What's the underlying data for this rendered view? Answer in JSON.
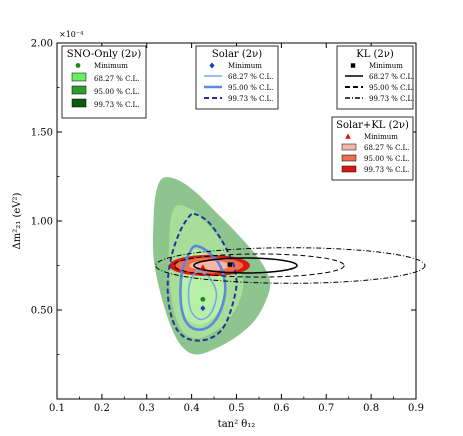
{
  "chart_data": {
    "type": "contour",
    "xlabel": "tan² θ₁₂",
    "ylabel": "Δm²₂₁ (eV²)",
    "y_multiplier": "×10⁻⁴",
    "xlim": [
      0.1,
      0.9
    ],
    "ylim": [
      0.0,
      2.0
    ],
    "x_ticks": [
      "0.1",
      "0.2",
      "0.3",
      "0.4",
      "0.5",
      "0.6",
      "0.7",
      "0.8",
      "0.9"
    ],
    "y_ticks": [
      "0.50",
      "1.00",
      "1.50",
      "2.00"
    ],
    "legends": [
      {
        "title": "SNO-Only (2ν)",
        "placement": "top-left",
        "entries": [
          {
            "label": "Minimum",
            "kind": "marker",
            "color": "#1a8a1a"
          },
          {
            "label": "68.27 % C.L.",
            "kind": "fill",
            "color": "#66ee66"
          },
          {
            "label": "95.00 % C.L.",
            "kind": "fill",
            "color": "#2e9e2e"
          },
          {
            "label": "99.73 % C.L.",
            "kind": "fill",
            "color": "#0f5a0f"
          }
        ]
      },
      {
        "title": "Solar (2ν)",
        "placement": "top-center",
        "entries": [
          {
            "label": "Minimum",
            "kind": "marker",
            "color": "#1f3fbf"
          },
          {
            "label": "68.27 % C.L.",
            "kind": "line",
            "style": "solid-thin",
            "color": "#7ba7ee"
          },
          {
            "label": "95.00 % C.L.",
            "kind": "line",
            "style": "solid-thick",
            "color": "#5b8ae0"
          },
          {
            "label": "99.73 % C.L.",
            "kind": "line",
            "style": "dashed",
            "color": "#22339b"
          }
        ]
      },
      {
        "title": "KL (2ν)",
        "placement": "top-right",
        "entries": [
          {
            "label": "Minimum",
            "kind": "marker",
            "color": "#000000"
          },
          {
            "label": "68.27 % C.L.",
            "kind": "line",
            "style": "solid",
            "color": "#000000"
          },
          {
            "label": "95.00 % C.L.",
            "kind": "line",
            "style": "dashed",
            "color": "#000000"
          },
          {
            "label": "99.73 % C.L.",
            "kind": "line",
            "style": "dashdot",
            "color": "#000000"
          }
        ]
      },
      {
        "title": "Solar+KL (2ν)",
        "placement": "right",
        "entries": [
          {
            "label": "Minimum",
            "kind": "marker",
            "color": "#dd1111"
          },
          {
            "label": "68.27 % C.L.",
            "kind": "fill",
            "color": "#f7b7a8"
          },
          {
            "label": "95.00 % C.L.",
            "kind": "fill",
            "color": "#ec6f50"
          },
          {
            "label": "99.73 % C.L.",
            "kind": "fill",
            "color": "#d81a12"
          }
        ]
      }
    ],
    "minima": [
      {
        "set": "SNO-Only",
        "x": 0.425,
        "y": 0.56,
        "color": "#1a8a1a"
      },
      {
        "set": "Solar",
        "x": 0.425,
        "y": 0.51,
        "color": "#1f3fbf"
      },
      {
        "set": "KL",
        "x": 0.485,
        "y": 0.755,
        "color": "#000000"
      },
      {
        "set": "Solar+KL",
        "x": 0.425,
        "y": 0.74,
        "color": "#dd1111"
      }
    ],
    "regions": [
      {
        "set": "SNO-Only",
        "level": "99.73",
        "points": [
          [
            0.335,
            1.24
          ],
          [
            0.37,
            1.23
          ],
          [
            0.41,
            1.16
          ],
          [
            0.45,
            1.06
          ],
          [
            0.49,
            0.96
          ],
          [
            0.53,
            0.85
          ],
          [
            0.56,
            0.75
          ],
          [
            0.575,
            0.65
          ],
          [
            0.565,
            0.55
          ],
          [
            0.54,
            0.44
          ],
          [
            0.5,
            0.35
          ],
          [
            0.45,
            0.28
          ],
          [
            0.41,
            0.25
          ],
          [
            0.38,
            0.29
          ],
          [
            0.355,
            0.4
          ],
          [
            0.33,
            0.6
          ],
          [
            0.315,
            0.8
          ],
          [
            0.315,
            1.0
          ],
          [
            0.32,
            1.15
          ]
        ],
        "color": "#8ec58e"
      },
      {
        "set": "SNO-Only",
        "level": "95.00",
        "points": [
          [
            0.37,
            1.09
          ],
          [
            0.41,
            1.05
          ],
          [
            0.44,
            0.97
          ],
          [
            0.47,
            0.87
          ],
          [
            0.5,
            0.76
          ],
          [
            0.515,
            0.65
          ],
          [
            0.505,
            0.54
          ],
          [
            0.48,
            0.44
          ],
          [
            0.445,
            0.37
          ],
          [
            0.41,
            0.34
          ],
          [
            0.38,
            0.38
          ],
          [
            0.36,
            0.5
          ],
          [
            0.35,
            0.7
          ],
          [
            0.35,
            0.9
          ],
          [
            0.355,
            1.03
          ]
        ],
        "color": "#a8de9a"
      },
      {
        "set": "SNO-Only",
        "level": "68.27",
        "points": [
          [
            0.395,
            0.84
          ],
          [
            0.43,
            0.81
          ],
          [
            0.46,
            0.73
          ],
          [
            0.475,
            0.63
          ],
          [
            0.465,
            0.52
          ],
          [
            0.44,
            0.44
          ],
          [
            0.41,
            0.42
          ],
          [
            0.385,
            0.47
          ],
          [
            0.375,
            0.6
          ],
          [
            0.378,
            0.74
          ]
        ],
        "color": "#b8f0a8"
      }
    ],
    "solar_contours": [
      {
        "level": "99.73",
        "style": "dashed",
        "color": "#22339b",
        "points": [
          [
            0.405,
            1.04
          ],
          [
            0.435,
            1.0
          ],
          [
            0.46,
            0.92
          ],
          [
            0.48,
            0.83
          ],
          [
            0.495,
            0.74
          ],
          [
            0.5,
            0.64
          ],
          [
            0.49,
            0.52
          ],
          [
            0.475,
            0.42
          ],
          [
            0.455,
            0.36
          ],
          [
            0.425,
            0.33
          ],
          [
            0.39,
            0.34
          ],
          [
            0.365,
            0.4
          ],
          [
            0.35,
            0.52
          ],
          [
            0.347,
            0.66
          ],
          [
            0.355,
            0.8
          ],
          [
            0.372,
            0.93
          ],
          [
            0.39,
            1.01
          ]
        ]
      },
      {
        "level": "95.00",
        "style": "solid-thick",
        "color": "#5b8ae0",
        "points": [
          [
            0.41,
            0.86
          ],
          [
            0.44,
            0.82
          ],
          [
            0.465,
            0.74
          ],
          [
            0.475,
            0.62
          ],
          [
            0.465,
            0.5
          ],
          [
            0.445,
            0.42
          ],
          [
            0.42,
            0.39
          ],
          [
            0.395,
            0.41
          ],
          [
            0.38,
            0.48
          ],
          [
            0.375,
            0.6
          ],
          [
            0.38,
            0.73
          ],
          [
            0.395,
            0.82
          ]
        ]
      },
      {
        "level": "68.27",
        "style": "solid-thin",
        "color": "#7ba7ee",
        "points": [
          [
            0.415,
            0.72
          ],
          [
            0.44,
            0.68
          ],
          [
            0.455,
            0.6
          ],
          [
            0.45,
            0.52
          ],
          [
            0.435,
            0.46
          ],
          [
            0.415,
            0.45
          ],
          [
            0.398,
            0.5
          ],
          [
            0.393,
            0.6
          ],
          [
            0.4,
            0.68
          ]
        ]
      }
    ],
    "kl_contours": [
      {
        "level": "99.73",
        "style": "dashdot",
        "cx": 0.62,
        "cy": 0.75,
        "rx": 0.3,
        "ry": 0.1
      },
      {
        "level": "95.00",
        "style": "dashed",
        "cx": 0.55,
        "cy": 0.75,
        "rx": 0.19,
        "ry": 0.065
      },
      {
        "level": "68.27",
        "style": "solid",
        "cx": 0.52,
        "cy": 0.75,
        "rx": 0.115,
        "ry": 0.042
      }
    ],
    "combined_regions": [
      {
        "level": "99.73",
        "cx": 0.44,
        "cy": 0.75,
        "rx": 0.09,
        "ry": 0.06,
        "color": "#d81a12"
      },
      {
        "level": "95.00",
        "cx": 0.44,
        "cy": 0.75,
        "rx": 0.075,
        "ry": 0.045,
        "color": "#ec6f50"
      },
      {
        "level": "68.27",
        "cx": 0.44,
        "cy": 0.75,
        "rx": 0.045,
        "ry": 0.028,
        "color": "#f7b7a8"
      }
    ]
  }
}
